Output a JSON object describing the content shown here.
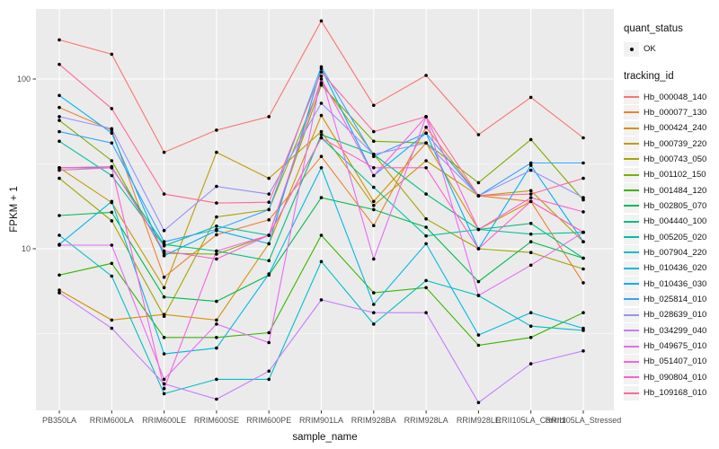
{
  "axes": {
    "x_title": "sample_name",
    "y_title": "FPKM + 1",
    "y_tick_labels": [
      "100",
      "10"
    ]
  },
  "legend": {
    "quant_status_title": "quant_status",
    "ok_label": "OK",
    "tracking_title": "tracking_id"
  },
  "colors": {
    "panel_background": "#EBEBEB",
    "grid": "#FFFFFF",
    "tick_mark": "#333333",
    "tick_text": "#4D4D4D",
    "point": "#000000",
    "legend_key_background": "#F2F2F2"
  },
  "chart_data": {
    "type": "line",
    "xlabel": "sample_name",
    "ylabel": "FPKM + 1",
    "y_scale": "log10",
    "y_major_ticks": [
      100,
      10
    ],
    "y_minor_ticks": [
      31.62,
      3.162
    ],
    "ylim": [
      1.1,
      260
    ],
    "grid": "on",
    "legend_position": "right",
    "quant_status": "OK",
    "marker": {
      "shape": "point",
      "color": "#000000",
      "radius": 1.8
    },
    "x_categories": [
      "PB350LA",
      "RRIM600LA",
      "RRIM600LE",
      "RRIM600SE",
      "RRIM600PE",
      "RRIM901LA",
      "RRIM928BA",
      "RRIM928LA",
      "RRIM928LE",
      "RRII105LA_Control",
      "RRII105LA_Stressed"
    ],
    "series": [
      {
        "name": "Hb_000048_140",
        "color": "#F8766D",
        "values": [
          170,
          140,
          37,
          50,
          60,
          220,
          70,
          105,
          47,
          78,
          45
        ]
      },
      {
        "name": "Hb_000077_130",
        "color": "#EA8331",
        "values": [
          68,
          50,
          6.8,
          12.1,
          14.8,
          35,
          13.7,
          52,
          20.5,
          19,
          6.3
        ]
      },
      {
        "name": "Hb_000424_240",
        "color": "#D89000",
        "values": [
          5.7,
          3.8,
          4.1,
          3.8,
          10.7,
          61,
          19,
          42,
          13,
          19,
          12.5
        ]
      },
      {
        "name": "Hb_000739_220",
        "color": "#C09B00",
        "values": [
          30,
          18.7,
          5.9,
          37,
          26,
          49,
          18,
          33,
          20.5,
          22,
          11
        ]
      },
      {
        "name": "Hb_000743_050",
        "color": "#A3A500",
        "values": [
          26,
          14.6,
          4.0,
          15.4,
          17,
          95,
          36,
          15,
          10,
          9.5,
          7.6
        ]
      },
      {
        "name": "Hb_001102_150",
        "color": "#7CAE00",
        "values": [
          57,
          33,
          9.4,
          9.3,
          12,
          92,
          43,
          42,
          24.5,
          44,
          19.4
        ]
      },
      {
        "name": "Hb_001484_120",
        "color": "#39B600",
        "values": [
          7.0,
          8.2,
          3.0,
          3.0,
          3.2,
          12,
          5.5,
          5.9,
          2.7,
          3.0,
          4.2
        ]
      },
      {
        "name": "Hb_002805_070",
        "color": "#00BB4E",
        "values": [
          15.7,
          16.4,
          5.2,
          4.9,
          7.0,
          20,
          17,
          13.4,
          6.4,
          11,
          8.8
        ]
      },
      {
        "name": "Hb_004440_100",
        "color": "#00BF7D",
        "values": [
          30,
          30,
          10.6,
          9.7,
          8.5,
          47,
          36,
          21,
          13,
          14.1,
          8.8
        ]
      },
      {
        "name": "Hb_005205_020",
        "color": "#00C1A3",
        "values": [
          43,
          27,
          10.4,
          13.6,
          12,
          45,
          23,
          11.9,
          13,
          12.2,
          12.5
        ]
      },
      {
        "name": "Hb_007904_220",
        "color": "#00BFC4",
        "values": [
          12,
          6.9,
          1.4,
          1.7,
          1.7,
          8.4,
          3.6,
          6.5,
          5.3,
          3.5,
          3.3
        ]
      },
      {
        "name": "Hb_010436_020",
        "color": "#00BAE0",
        "values": [
          10.6,
          19,
          2.4,
          2.6,
          7.1,
          30,
          4.7,
          10.7,
          3.1,
          4.2,
          3.4
        ]
      },
      {
        "name": "Hb_010436_030",
        "color": "#00B0F6",
        "values": [
          80,
          48,
          9.1,
          12.8,
          10.7,
          115,
          27,
          48,
          10,
          31,
          11
        ]
      },
      {
        "name": "Hb_025814_010",
        "color": "#35A2FF",
        "values": [
          49,
          42,
          11,
          13,
          17,
          118,
          35,
          48,
          20.5,
          32,
          32
        ]
      },
      {
        "name": "Hb_028639_010",
        "color": "#9590FF",
        "values": [
          60,
          51,
          12.8,
          23.3,
          21,
          72,
          36,
          42,
          20.5,
          29,
          20
        ]
      },
      {
        "name": "Hb_034299_040",
        "color": "#C77CFF",
        "values": [
          5.5,
          3.4,
          1.6,
          1.3,
          1.9,
          5.0,
          4.2,
          4.2,
          1.24,
          2.1,
          2.5
        ]
      },
      {
        "name": "Hb_049675_010",
        "color": "#E76BF3",
        "values": [
          10.5,
          10.5,
          1.7,
          3.6,
          2.8,
          104,
          8.7,
          60,
          5.3,
          8.0,
          12.5
        ]
      },
      {
        "name": "Hb_051407_010",
        "color": "#FA62DB",
        "values": [
          29,
          30,
          1.5,
          9.7,
          12,
          100,
          27,
          60,
          13,
          20,
          16.5
        ]
      },
      {
        "name": "Hb_090804_010",
        "color": "#FF61CC",
        "values": [
          30,
          30.5,
          9.7,
          8.7,
          12,
          45,
          30,
          30,
          10,
          19,
          12.5
        ]
      },
      {
        "name": "Hb_109168_010",
        "color": "#FF6A98",
        "values": [
          122,
          67,
          21,
          18.6,
          18.8,
          110,
          49,
          60,
          20.5,
          21,
          26
        ]
      }
    ]
  }
}
